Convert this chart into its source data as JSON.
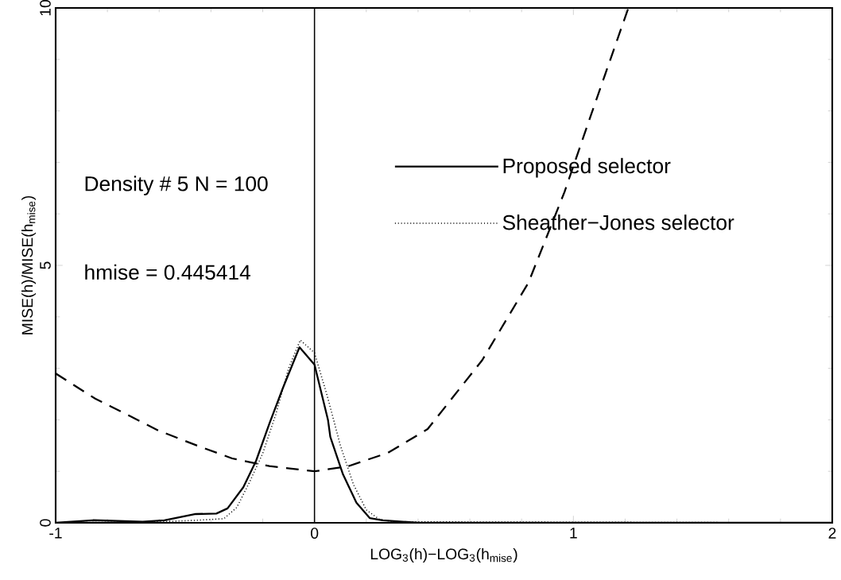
{
  "chart_data": {
    "type": "line",
    "xlabel": "LOG$_{3}$(h)−LOG$_{3}$(h$_{mise}$)",
    "ylabel": "MISE(h)/MISE(h$_{mise}$)",
    "xlim": [
      -1,
      2
    ],
    "ylim": [
      0,
      10
    ],
    "xticks": [
      -1,
      0,
      1,
      2
    ],
    "yticks": [
      0,
      5,
      10
    ],
    "grid": false,
    "legend": "top",
    "series": [
      {
        "name": "Proposed selector",
        "color": "#000000",
        "line_style": "solid",
        "x": [
          -1,
          -0.856,
          -0.664,
          -0.58,
          -0.459,
          -0.379,
          -0.336,
          -0.275,
          -0.226,
          -0.174,
          -0.122,
          -0.058,
          0,
          0.052,
          0.061,
          0.11,
          0.162,
          0.214,
          0.263,
          0.4,
          2
        ],
        "values": [
          0,
          0.05,
          0.02,
          0.05,
          0.17,
          0.18,
          0.28,
          0.69,
          1.2,
          1.93,
          2.62,
          3.41,
          3.07,
          2.0,
          1.67,
          0.94,
          0.39,
          0.09,
          0.05,
          0,
          0
        ]
      },
      {
        "name": "Sheather−Jones selector",
        "color": "#000000",
        "line_style": "dotted",
        "x": [
          -1,
          -0.6,
          -0.45,
          -0.35,
          -0.3,
          -0.25,
          -0.2,
          -0.15,
          -0.1,
          -0.055,
          0,
          0.05,
          0.1,
          0.15,
          0.2,
          0.25,
          0.3,
          2
        ],
        "values": [
          0,
          0.02,
          0.05,
          0.08,
          0.3,
          0.8,
          1.35,
          2.1,
          3.0,
          3.55,
          3.3,
          2.45,
          1.5,
          0.75,
          0.25,
          0.07,
          0.02,
          0
        ]
      },
      {
        "color": "#000000",
        "line_style": "dashed",
        "x": [
          -1,
          -0.847,
          -0.755,
          -0.602,
          -0.459,
          -0.318,
          -0.174,
          0,
          0.131,
          0.284,
          0.437,
          0.648,
          0.826,
          0.966,
          1.07,
          1.211
        ],
        "values": [
          2.9,
          2.41,
          2.18,
          1.79,
          1.51,
          1.25,
          1.1,
          1.0,
          1.1,
          1.36,
          1.82,
          3.16,
          4.66,
          6.43,
          7.95,
          9.98
        ]
      }
    ],
    "ref_lines": [
      {
        "axis": "x",
        "value": 0,
        "color": "#000000",
        "line_style": "solid"
      }
    ],
    "annotations": [
      "Density # 5  N = 100",
      "hmise = 0.445414"
    ]
  }
}
